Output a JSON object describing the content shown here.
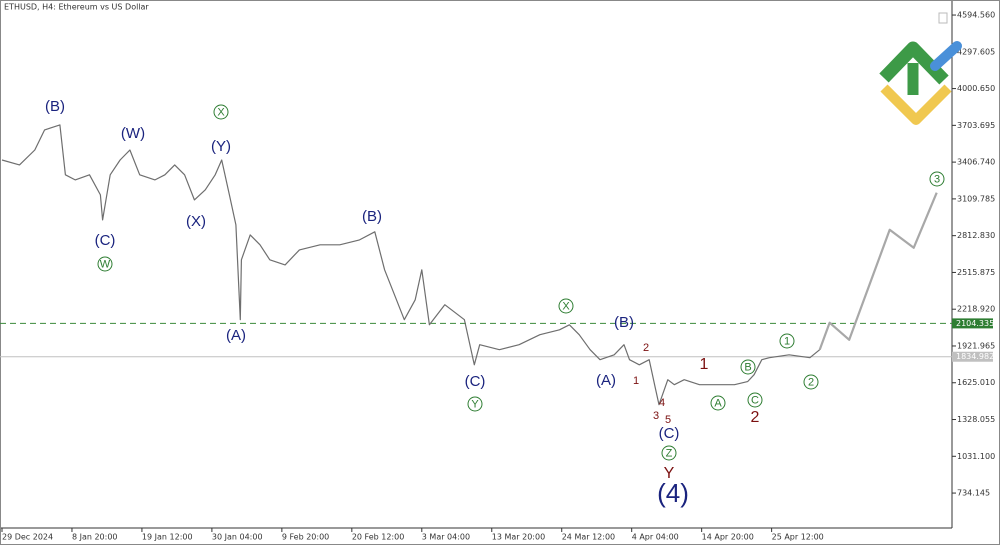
{
  "chart_data": {
    "type": "line",
    "title": "ETHUSD, H4:  Ethereum vs US Dollar",
    "series": [
      {
        "color": "#6e6e6e",
        "x": [
          0,
          16,
          30,
          39,
          53,
          58,
          67,
          80,
          90,
          92,
          99,
          108,
          117,
          126,
          140,
          149,
          158,
          167,
          176,
          186,
          195,
          201,
          208,
          214,
          218,
          219,
          227,
          236,
          245,
          259,
          272,
          291,
          309,
          327,
          341,
          350,
          359,
          368,
          378,
          384,
          391,
          405,
          423,
          432,
          437,
          455,
          473,
          492,
          510,
          519,
          528,
          538,
          547,
          560,
          569,
          574,
          583,
          592,
          597,
          601,
          609,
          615,
          624,
          638,
          652,
          670,
          682,
          688,
          695,
          702,
          720,
          739,
          748
        ],
        "values": [
          3424,
          3384,
          3505,
          3667,
          3707,
          3304,
          3263,
          3304,
          3142,
          2940,
          3304,
          3424,
          3505,
          3304,
          3263,
          3304,
          3384,
          3304,
          3102,
          3183,
          3304,
          3424,
          3142,
          2900,
          2134,
          2618,
          2819,
          2739,
          2618,
          2577,
          2698,
          2739,
          2739,
          2779,
          2844,
          2537,
          2335,
          2134,
          2295,
          2537,
          2093,
          2255,
          2134,
          1770,
          1932,
          1892,
          1932,
          2013,
          2053,
          2093,
          2013,
          1892,
          1811,
          1851,
          1932,
          1811,
          1770,
          1811,
          1609,
          1448,
          1650,
          1609,
          1650,
          1609,
          1609,
          1609,
          1634,
          1690,
          1811,
          1827,
          1851,
          1827,
          1892
        ]
      },
      {
        "color": "#a8a8a8",
        "x": [
          748,
          757,
          775,
          812,
          834,
          855
        ],
        "values": [
          1892,
          2110,
          1972,
          2860,
          2715,
          3160
        ]
      }
    ],
    "annotations": [
      "(B)",
      "(W)",
      "X",
      "(Y)",
      "(X)",
      "(C)",
      "W",
      "(A)",
      "(B)",
      "(C)",
      "Y",
      "X",
      "(B)",
      "(A)",
      "2",
      "1",
      "4",
      "3",
      "5",
      "(C)",
      "Z",
      "Y",
      "(4)",
      "1",
      "B",
      "A",
      "C",
      "2",
      "1",
      "2",
      "3"
    ],
    "level": 2104.335,
    "current_price": 1834.982,
    "xlim": [
      0,
      869
    ],
    "ylim": [
      452,
      4716
    ],
    "xticks": [
      {
        "value": 0,
        "label": "29 Dec 2024"
      },
      {
        "value": 64,
        "label": "8 Jan 20:00"
      },
      {
        "value": 128,
        "label": "19 Jan 12:00"
      },
      {
        "value": 192,
        "label": "30 Jan 04:00"
      },
      {
        "value": 256,
        "label": "9 Feb 20:00"
      },
      {
        "value": 320,
        "label": "20 Feb 12:00"
      },
      {
        "value": 384,
        "label": "3 Mar 04:00"
      },
      {
        "value": 448,
        "label": "13 Mar 20:00"
      },
      {
        "value": 512,
        "label": "24 Mar 12:00"
      },
      {
        "value": 576,
        "label": "4 Apr 04:00"
      },
      {
        "value": 640,
        "label": "14 Apr 20:00"
      },
      {
        "value": 704,
        "label": "25 Apr 12:00"
      }
    ],
    "yticks": [
      {
        "value": 4594.56,
        "label": "4594.560"
      },
      {
        "value": 4297.605,
        "label": "4297.605"
      },
      {
        "value": 4000.65,
        "label": "4000.650"
      },
      {
        "value": 3703.695,
        "label": "3703.695"
      },
      {
        "value": 3406.74,
        "label": "3406.740"
      },
      {
        "value": 3109.785,
        "label": "3109.785"
      },
      {
        "value": 2812.83,
        "label": "2812.830"
      },
      {
        "value": 2515.875,
        "label": "2515.875"
      },
      {
        "value": 2218.92,
        "label": "2218.920"
      },
      {
        "value": 1921.965,
        "label": "1921.965"
      },
      {
        "value": 1625.01,
        "label": "1625.010"
      },
      {
        "value": 1328.055,
        "label": "1328.055"
      },
      {
        "value": 1031.1,
        "label": "1031.100"
      },
      {
        "value": 734.145,
        "label": "734.145"
      }
    ]
  }
}
